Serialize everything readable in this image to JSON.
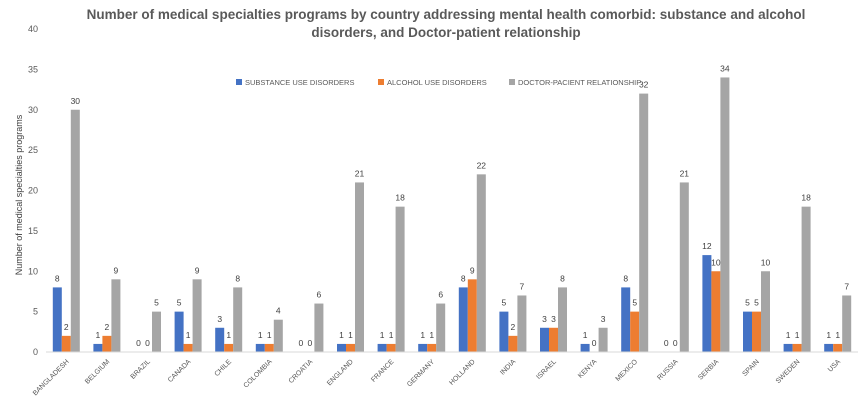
{
  "chart_data": {
    "type": "bar",
    "title_line1": "Number of medical specialties programs by country addressing mental health comorbid: substance and alcohol",
    "title_line2": "disorders, and Doctor-patient relationship",
    "ylabel": "Number of medical specialties programs",
    "xlabel": "",
    "ylim": [
      0,
      40
    ],
    "yticks": [
      0,
      5,
      10,
      15,
      20,
      25,
      30,
      35,
      40
    ],
    "grid": false,
    "legend_position": "top",
    "categories": [
      "BANGLADESH",
      "BELGIUM",
      "BRAZIL",
      "CANADA",
      "CHILE",
      "COLOMBIA",
      "CROATIA",
      "ENGLAND",
      "FRANCE",
      "GERMANY",
      "HOLLAND",
      "INDIA",
      "ISRAEL",
      "KENYA",
      "MEXICO",
      "RUSSIA",
      "SERBIA",
      "SPAIN",
      "SWEDEN",
      "USA"
    ],
    "series": [
      {
        "name": "SUBSTANCE USE DISORDERS",
        "color": "#4472C4",
        "values": [
          8,
          1,
          0,
          5,
          3,
          1,
          0,
          1,
          1,
          1,
          8,
          5,
          3,
          1,
          8,
          0,
          12,
          5,
          1,
          1
        ]
      },
      {
        "name": "ALCOHOL USE DISORDERS",
        "color": "#ED7D31",
        "values": [
          2,
          2,
          0,
          1,
          1,
          1,
          0,
          1,
          1,
          1,
          9,
          2,
          3,
          0,
          5,
          0,
          10,
          5,
          1,
          1
        ]
      },
      {
        "name": "DOCTOR-PACIENT RELATIONSHIP",
        "color": "#A5A5A5",
        "values": [
          30,
          9,
          5,
          9,
          8,
          4,
          6,
          21,
          18,
          6,
          22,
          7,
          8,
          3,
          32,
          21,
          34,
          10,
          18,
          7
        ]
      }
    ]
  }
}
